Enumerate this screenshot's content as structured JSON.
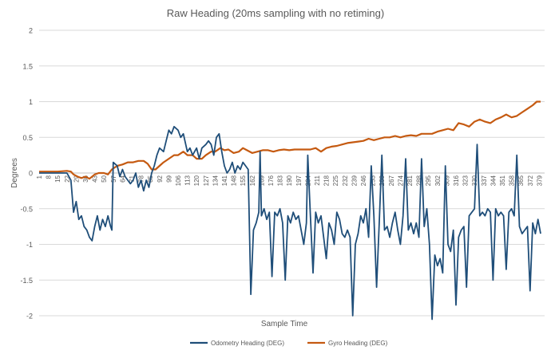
{
  "chart_data": {
    "type": "line",
    "title": "Raw Heading (20ms sampling with no retiming)",
    "xlabel": "Sample Time",
    "ylabel": "Degrees",
    "ylim": [
      -2,
      2
    ],
    "yticks": [
      -2,
      -1.5,
      -1,
      -0.5,
      0,
      0.5,
      1,
      1.5,
      2
    ],
    "ytick_labels": [
      "-2",
      "-1.5",
      "-1",
      "-0.5",
      "0",
      "0.5",
      "1",
      "1.5",
      "2"
    ],
    "xlim": [
      1,
      383
    ],
    "xtick_labels": [
      "1",
      "8",
      "15",
      "22",
      "29",
      "36",
      "43",
      "50",
      "57",
      "64",
      "71",
      "78",
      "85",
      "92",
      "99",
      "106",
      "113",
      "120",
      "127",
      "134",
      "141",
      "148",
      "155",
      "162",
      "169",
      "176",
      "183",
      "190",
      "197",
      "204",
      "211",
      "218",
      "225",
      "232",
      "239",
      "246",
      "253",
      "260",
      "267",
      "274",
      "281",
      "288",
      "295",
      "302",
      "309",
      "316",
      "323",
      "330",
      "337",
      "344",
      "351",
      "358",
      "365",
      "372",
      "379"
    ],
    "grid": "horizontal",
    "legend_position": "bottom",
    "series": [
      {
        "name": "Odometry Heading (DEG)",
        "color": "#1f4e79",
        "points": [
          [
            1,
            0
          ],
          [
            8,
            0
          ],
          [
            15,
            0
          ],
          [
            22,
            0
          ],
          [
            25,
            -0.1
          ],
          [
            27,
            -0.55
          ],
          [
            29,
            -0.4
          ],
          [
            31,
            -0.65
          ],
          [
            33,
            -0.6
          ],
          [
            35,
            -0.75
          ],
          [
            37,
            -0.8
          ],
          [
            39,
            -0.9
          ],
          [
            41,
            -0.95
          ],
          [
            43,
            -0.75
          ],
          [
            45,
            -0.6
          ],
          [
            47,
            -0.8
          ],
          [
            49,
            -0.65
          ],
          [
            51,
            -0.75
          ],
          [
            53,
            -0.6
          ],
          [
            55,
            -0.75
          ],
          [
            56,
            -0.8
          ],
          [
            57,
            0.15
          ],
          [
            60,
            0.1
          ],
          [
            62,
            -0.05
          ],
          [
            64,
            0.05
          ],
          [
            66,
            -0.05
          ],
          [
            68,
            -0.1
          ],
          [
            70,
            -0.15
          ],
          [
            72,
            -0.1
          ],
          [
            74,
            0
          ],
          [
            76,
            -0.2
          ],
          [
            78,
            -0.1
          ],
          [
            80,
            -0.25
          ],
          [
            82,
            -0.1
          ],
          [
            84,
            -0.2
          ],
          [
            86,
            0
          ],
          [
            88,
            0.1
          ],
          [
            90,
            0.25
          ],
          [
            92,
            0.35
          ],
          [
            95,
            0.3
          ],
          [
            97,
            0.45
          ],
          [
            99,
            0.6
          ],
          [
            101,
            0.55
          ],
          [
            103,
            0.65
          ],
          [
            106,
            0.6
          ],
          [
            108,
            0.5
          ],
          [
            110,
            0.55
          ],
          [
            113,
            0.3
          ],
          [
            115,
            0.35
          ],
          [
            117,
            0.25
          ],
          [
            120,
            0.35
          ],
          [
            122,
            0.2
          ],
          [
            124,
            0.35
          ],
          [
            127,
            0.4
          ],
          [
            129,
            0.45
          ],
          [
            131,
            0.4
          ],
          [
            133,
            0.25
          ],
          [
            135,
            0.5
          ],
          [
            137,
            0.55
          ],
          [
            139,
            0.3
          ],
          [
            141,
            0.1
          ],
          [
            143,
            0
          ],
          [
            145,
            0.05
          ],
          [
            147,
            0.15
          ],
          [
            149,
            0
          ],
          [
            151,
            0.1
          ],
          [
            153,
            0.05
          ],
          [
            155,
            0.15
          ],
          [
            157,
            0.1
          ],
          [
            159,
            0.05
          ],
          [
            161,
            -1.7
          ],
          [
            163,
            -0.8
          ],
          [
            165,
            -0.7
          ],
          [
            167,
            -0.55
          ],
          [
            168,
            0.3
          ],
          [
            169,
            -0.6
          ],
          [
            171,
            -0.5
          ],
          [
            173,
            -0.65
          ],
          [
            175,
            -0.55
          ],
          [
            177,
            -1.45
          ],
          [
            179,
            -0.55
          ],
          [
            181,
            -0.6
          ],
          [
            183,
            -0.5
          ],
          [
            185,
            -0.7
          ],
          [
            187,
            -1.5
          ],
          [
            189,
            -0.6
          ],
          [
            191,
            -0.7
          ],
          [
            193,
            -0.55
          ],
          [
            195,
            -0.65
          ],
          [
            197,
            -0.6
          ],
          [
            199,
            -0.8
          ],
          [
            201,
            -1.0
          ],
          [
            203,
            -0.7
          ],
          [
            204,
            0.25
          ],
          [
            206,
            -0.6
          ],
          [
            208,
            -1.4
          ],
          [
            210,
            -0.55
          ],
          [
            212,
            -0.7
          ],
          [
            214,
            -0.6
          ],
          [
            216,
            -0.9
          ],
          [
            218,
            -1.2
          ],
          [
            220,
            -0.7
          ],
          [
            222,
            -0.8
          ],
          [
            224,
            -1.0
          ],
          [
            226,
            -0.55
          ],
          [
            228,
            -0.65
          ],
          [
            230,
            -0.85
          ],
          [
            232,
            -0.9
          ],
          [
            234,
            -0.8
          ],
          [
            236,
            -0.9
          ],
          [
            238,
            -2.0
          ],
          [
            240,
            -1.0
          ],
          [
            242,
            -0.85
          ],
          [
            244,
            -0.6
          ],
          [
            246,
            -0.7
          ],
          [
            248,
            -0.5
          ],
          [
            250,
            -0.9
          ],
          [
            252,
            0.1
          ],
          [
            254,
            -0.6
          ],
          [
            256,
            -1.6
          ],
          [
            258,
            -0.7
          ],
          [
            260,
            0.25
          ],
          [
            262,
            -0.8
          ],
          [
            264,
            -0.75
          ],
          [
            266,
            -0.9
          ],
          [
            268,
            -0.7
          ],
          [
            270,
            -0.55
          ],
          [
            272,
            -0.8
          ],
          [
            274,
            -1.0
          ],
          [
            276,
            -0.6
          ],
          [
            278,
            0.2
          ],
          [
            280,
            -0.8
          ],
          [
            282,
            -0.7
          ],
          [
            284,
            -0.85
          ],
          [
            286,
            -0.7
          ],
          [
            288,
            -0.9
          ],
          [
            290,
            0.2
          ],
          [
            292,
            -0.75
          ],
          [
            294,
            -0.5
          ],
          [
            296,
            -1.0
          ],
          [
            298,
            -2.05
          ],
          [
            300,
            -1.15
          ],
          [
            302,
            -1.3
          ],
          [
            304,
            -1.2
          ],
          [
            306,
            -1.4
          ],
          [
            308,
            0.1
          ],
          [
            310,
            -1.0
          ],
          [
            312,
            -1.1
          ],
          [
            314,
            -0.8
          ],
          [
            316,
            -1.85
          ],
          [
            318,
            -0.9
          ],
          [
            320,
            -0.8
          ],
          [
            322,
            -0.75
          ],
          [
            324,
            -1.6
          ],
          [
            326,
            -0.6
          ],
          [
            328,
            -0.55
          ],
          [
            330,
            -0.5
          ],
          [
            332,
            0.4
          ],
          [
            334,
            -0.6
          ],
          [
            336,
            -0.55
          ],
          [
            338,
            -0.6
          ],
          [
            340,
            -0.5
          ],
          [
            342,
            -0.55
          ],
          [
            344,
            -1.5
          ],
          [
            346,
            -0.5
          ],
          [
            348,
            -0.6
          ],
          [
            350,
            -0.55
          ],
          [
            352,
            -0.6
          ],
          [
            354,
            -1.35
          ],
          [
            356,
            -0.55
          ],
          [
            358,
            -0.5
          ],
          [
            360,
            -0.6
          ],
          [
            362,
            0.25
          ],
          [
            364,
            -0.75
          ],
          [
            366,
            -0.85
          ],
          [
            368,
            -0.8
          ],
          [
            370,
            -0.75
          ],
          [
            372,
            -1.65
          ],
          [
            374,
            -0.7
          ],
          [
            376,
            -0.85
          ],
          [
            378,
            -0.65
          ],
          [
            380,
            -0.85
          ]
        ]
      },
      {
        "name": "Gyro Heading (DEG)",
        "color": "#c55a11",
        "points": [
          [
            1,
            0.02
          ],
          [
            8,
            0.02
          ],
          [
            15,
            0.02
          ],
          [
            22,
            0.03
          ],
          [
            25,
            0.02
          ],
          [
            27,
            -0.02
          ],
          [
            30,
            -0.05
          ],
          [
            33,
            -0.07
          ],
          [
            36,
            -0.05
          ],
          [
            39,
            -0.08
          ],
          [
            43,
            -0.02
          ],
          [
            46,
            0
          ],
          [
            50,
            0
          ],
          [
            53,
            -0.02
          ],
          [
            56,
            0.05
          ],
          [
            60,
            0.1
          ],
          [
            64,
            0.12
          ],
          [
            68,
            0.15
          ],
          [
            72,
            0.15
          ],
          [
            76,
            0.17
          ],
          [
            80,
            0.17
          ],
          [
            83,
            0.13
          ],
          [
            86,
            0.05
          ],
          [
            89,
            0.05
          ],
          [
            92,
            0.1
          ],
          [
            95,
            0.15
          ],
          [
            99,
            0.2
          ],
          [
            103,
            0.25
          ],
          [
            106,
            0.25
          ],
          [
            110,
            0.3
          ],
          [
            113,
            0.25
          ],
          [
            117,
            0.25
          ],
          [
            120,
            0.2
          ],
          [
            124,
            0.2
          ],
          [
            127,
            0.25
          ],
          [
            131,
            0.3
          ],
          [
            134,
            0.3
          ],
          [
            138,
            0.35
          ],
          [
            141,
            0.32
          ],
          [
            144,
            0.33
          ],
          [
            148,
            0.28
          ],
          [
            152,
            0.3
          ],
          [
            155,
            0.35
          ],
          [
            158,
            0.32
          ],
          [
            162,
            0.28
          ],
          [
            166,
            0.3
          ],
          [
            170,
            0.32
          ],
          [
            174,
            0.32
          ],
          [
            178,
            0.3
          ],
          [
            182,
            0.32
          ],
          [
            186,
            0.33
          ],
          [
            190,
            0.32
          ],
          [
            194,
            0.33
          ],
          [
            198,
            0.33
          ],
          [
            202,
            0.33
          ],
          [
            206,
            0.33
          ],
          [
            210,
            0.35
          ],
          [
            214,
            0.3
          ],
          [
            218,
            0.35
          ],
          [
            222,
            0.37
          ],
          [
            226,
            0.38
          ],
          [
            230,
            0.4
          ],
          [
            234,
            0.42
          ],
          [
            238,
            0.43
          ],
          [
            242,
            0.44
          ],
          [
            246,
            0.45
          ],
          [
            250,
            0.48
          ],
          [
            254,
            0.46
          ],
          [
            258,
            0.48
          ],
          [
            262,
            0.5
          ],
          [
            266,
            0.5
          ],
          [
            270,
            0.52
          ],
          [
            274,
            0.5
          ],
          [
            278,
            0.52
          ],
          [
            282,
            0.53
          ],
          [
            286,
            0.52
          ],
          [
            290,
            0.55
          ],
          [
            294,
            0.55
          ],
          [
            298,
            0.55
          ],
          [
            302,
            0.58
          ],
          [
            306,
            0.6
          ],
          [
            310,
            0.62
          ],
          [
            314,
            0.6
          ],
          [
            318,
            0.7
          ],
          [
            322,
            0.68
          ],
          [
            326,
            0.65
          ],
          [
            330,
            0.72
          ],
          [
            334,
            0.75
          ],
          [
            338,
            0.72
          ],
          [
            342,
            0.7
          ],
          [
            346,
            0.75
          ],
          [
            350,
            0.78
          ],
          [
            354,
            0.82
          ],
          [
            358,
            0.78
          ],
          [
            362,
            0.8
          ],
          [
            366,
            0.85
          ],
          [
            370,
            0.9
          ],
          [
            374,
            0.95
          ],
          [
            377,
            1.0
          ],
          [
            380,
            1.0
          ]
        ]
      }
    ]
  }
}
